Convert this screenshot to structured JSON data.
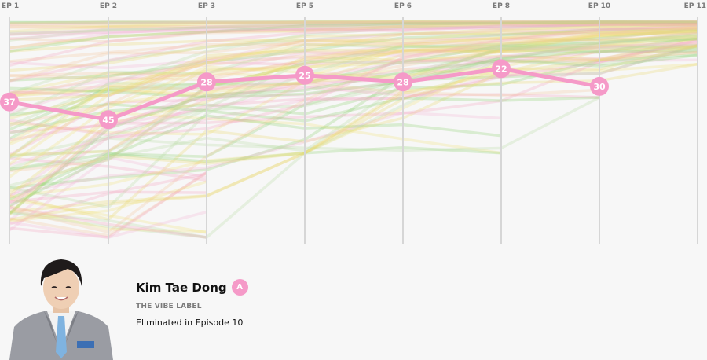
{
  "chart_data": {
    "type": "line",
    "x": [
      "EP 1",
      "EP 2",
      "EP 3",
      "EP 5",
      "EP 6",
      "EP 8",
      "EP 10",
      "EP 11"
    ],
    "ylim": [
      1,
      98
    ],
    "y_inverted": true,
    "grid": "vertical",
    "highlight_series": {
      "values": [
        37,
        45,
        28,
        25,
        28,
        22,
        30,
        null
      ],
      "color": "#f59ac8"
    },
    "background_series": {
      "survivors_per_episode": [
        98,
        98,
        98,
        60,
        60,
        60,
        35,
        20
      ],
      "colors": [
        "#f6b2d3",
        "#8ccf6e",
        "#f2e37a",
        "#f6c79a",
        "#b8dba0",
        "#f3a0bd",
        "#e8d66b"
      ]
    }
  },
  "profile": {
    "name": "Kim Tae Dong",
    "grade": "A",
    "agency": "THE VIBE LABEL",
    "status": "Eliminated in Episode 10",
    "photo": "trainee-portrait"
  }
}
